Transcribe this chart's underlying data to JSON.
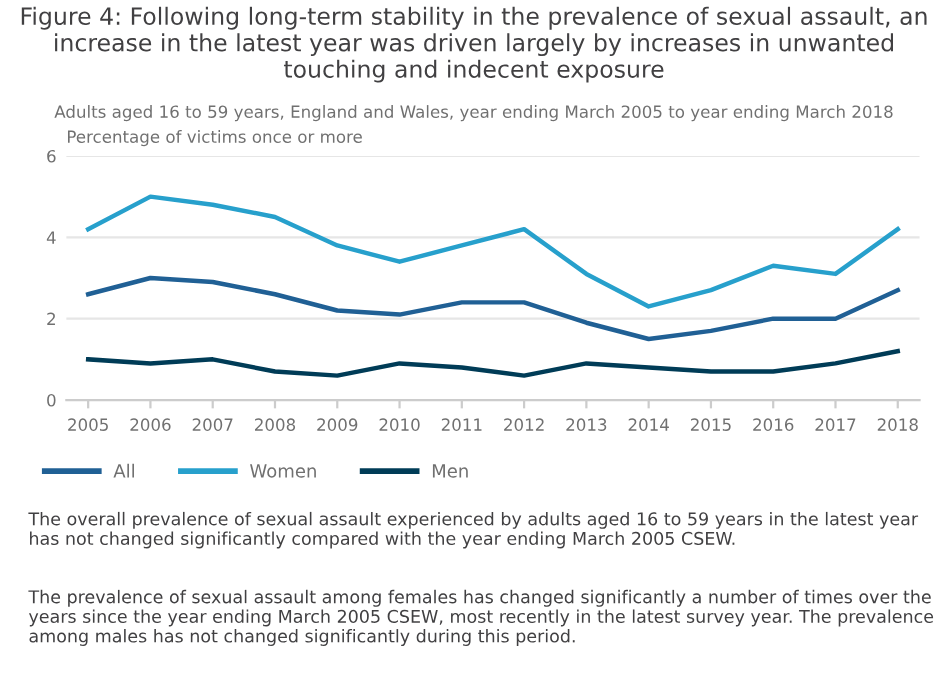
{
  "chart_data": {
    "type": "line",
    "title": "Figure 4: Following long-term stability in the prevalence of sexual assault, an increase in the latest year was driven largely by increases in unwanted touching and indecent exposure",
    "subtitle": "Adults aged 16 to 59 years, England and Wales, year ending March 2005 to year ending March 2018",
    "ylabel": "Percentage of victims once or more",
    "categories": [
      "2005",
      "2006",
      "2007",
      "2008",
      "2009",
      "2010",
      "2011",
      "2012",
      "2013",
      "2014",
      "2015",
      "2016",
      "2017",
      "2018"
    ],
    "series": [
      {
        "name": "All",
        "color": "#206095",
        "values": [
          2.6,
          3.0,
          2.9,
          2.6,
          2.2,
          2.1,
          2.4,
          2.4,
          1.9,
          1.5,
          1.7,
          2.0,
          2.0,
          2.7
        ]
      },
      {
        "name": "Women",
        "color": "#27a0cc",
        "values": [
          4.2,
          5.0,
          4.8,
          4.5,
          3.8,
          3.4,
          3.8,
          4.2,
          3.1,
          2.3,
          2.7,
          3.3,
          3.1,
          4.2
        ]
      },
      {
        "name": "Men",
        "color": "#003c57",
        "values": [
          1.0,
          0.9,
          1.0,
          0.7,
          0.6,
          0.9,
          0.8,
          0.6,
          0.9,
          0.8,
          0.7,
          0.7,
          0.9,
          1.2
        ]
      }
    ],
    "ylim": [
      0,
      6
    ],
    "yticks": [
      0,
      2,
      4,
      6
    ],
    "grid": "y",
    "legend": "bottom",
    "marker": "none",
    "line_style": "solid",
    "annotations": [
      "The overall prevalence of sexual assault experienced by adults aged 16 to 59 years in the latest year has not changed significantly compared with the year ending March 2005 CSEW.",
      "The prevalence of sexual assault among females has changed significantly a number of times over the years since the year ending March 2005 CSEW, most recently in the latest survey year. The prevalence among males has not changed significantly during this period."
    ]
  }
}
